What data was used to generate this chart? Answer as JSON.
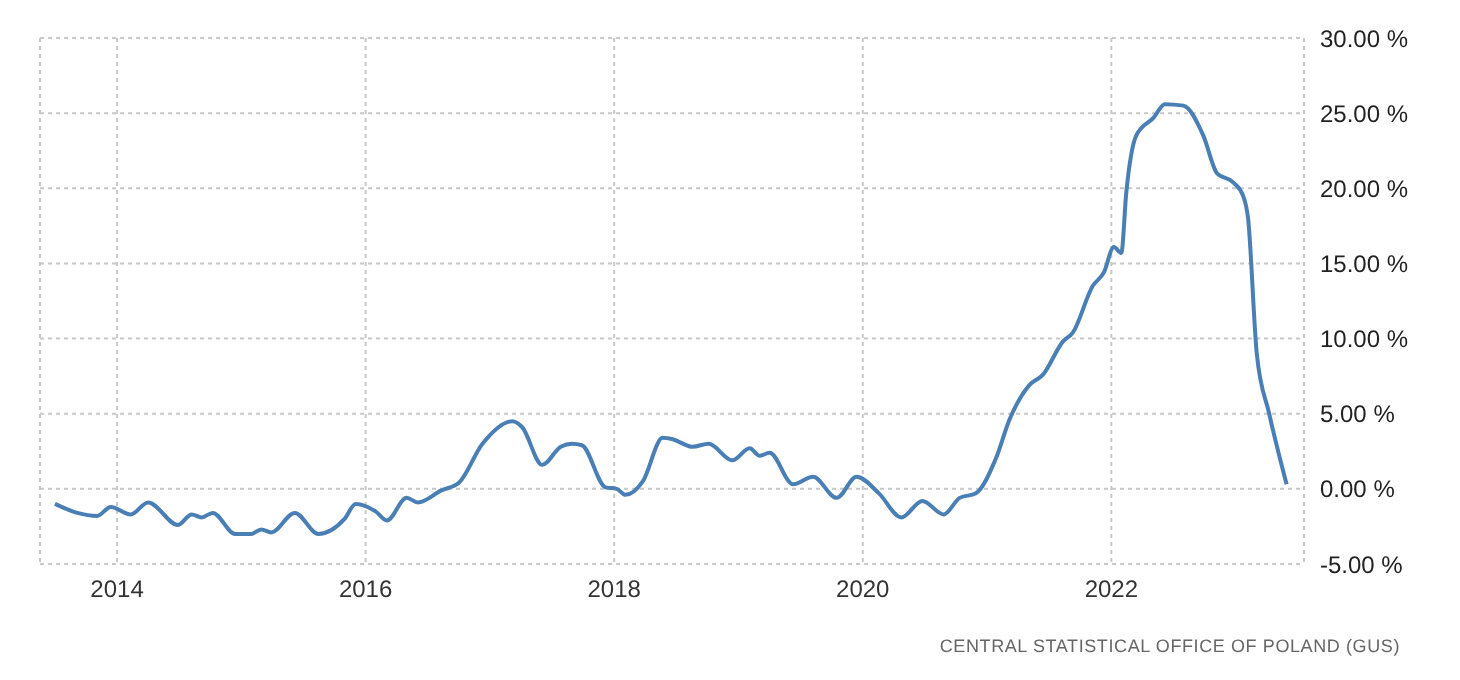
{
  "chart_data": {
    "type": "line",
    "x": [
      2013.5,
      2013.68,
      2013.84,
      2013.95,
      2014.11,
      2014.25,
      2014.49,
      2014.6,
      2014.68,
      2014.77,
      2014.95,
      2015.08,
      2015.16,
      2015.24,
      2015.43,
      2015.62,
      2015.83,
      2015.92,
      2016.08,
      2016.17,
      2016.33,
      2016.42,
      2016.61,
      2016.75,
      2016.94,
      2017.18,
      2017.26,
      2017.42,
      2017.57,
      2017.66,
      2017.74,
      2017.93,
      2018.02,
      2018.09,
      2018.23,
      2018.39,
      2018.47,
      2018.63,
      2018.76,
      2018.95,
      2019.09,
      2019.17,
      2019.25,
      2019.44,
      2019.6,
      2019.79,
      2019.95,
      2020.13,
      2020.31,
      2020.48,
      2020.65,
      2020.78,
      2020.91,
      2021.07,
      2021.18,
      2021.34,
      2021.45,
      2021.61,
      2021.69,
      2021.85,
      2021.94,
      2022.02,
      2022.08,
      2022.12,
      2022.2,
      2022.34,
      2022.43,
      2022.58,
      2022.74,
      2022.85,
      2022.98,
      2023.06,
      2023.1,
      2023.17,
      2023.27,
      2023.41
    ],
    "series": [
      {
        "color": "#4a7fb5",
        "values": [
          -1.0,
          -1.6,
          -1.8,
          -1.2,
          -1.7,
          -0.9,
          -2.4,
          -1.7,
          -1.9,
          -1.6,
          -3.0,
          -3.0,
          -2.7,
          -2.9,
          -1.6,
          -3.0,
          -2.0,
          -1.0,
          -1.5,
          -2.1,
          -0.6,
          -0.9,
          -0.1,
          0.4,
          3.0,
          4.5,
          4.1,
          1.6,
          2.8,
          3.0,
          2.9,
          0.1,
          0.0,
          -0.4,
          0.5,
          3.4,
          3.3,
          2.8,
          3.0,
          1.9,
          2.7,
          2.2,
          2.4,
          0.3,
          0.8,
          -0.6,
          0.8,
          -0.3,
          -1.9,
          -0.8,
          -1.7,
          -0.6,
          -0.3,
          2.0,
          4.6,
          6.9,
          7.6,
          9.8,
          10.4,
          13.5,
          14.4,
          16.1,
          15.7,
          19.7,
          23.5,
          24.7,
          25.6,
          25.5,
          23.5,
          21.0,
          20.4,
          19.5,
          18.0,
          9.0,
          5.0,
          0.3
        ]
      }
    ],
    "xlim": [
      2013.38,
      2023.55
    ],
    "xticks": [
      2014,
      2016,
      2018,
      2020,
      2022
    ],
    "ylim": [
      -5,
      30
    ],
    "yticks": [
      {
        "value": -5,
        "label": "-5.00 %"
      },
      {
        "value": 0,
        "label": "0.00 %"
      },
      {
        "value": 5,
        "label": "5.00 %"
      },
      {
        "value": 10,
        "label": "10.00 %"
      },
      {
        "value": 15,
        "label": "15.00 %"
      },
      {
        "value": 20,
        "label": "20.00 %"
      },
      {
        "value": 25,
        "label": "25.00 %"
      },
      {
        "value": 30,
        "label": "30.00 %"
      }
    ],
    "grid": true,
    "line_style": "solid",
    "marker": "none",
    "annotations": [
      "CENTRAL STATISTICAL OFFICE OF POLAND (GUS)"
    ]
  }
}
